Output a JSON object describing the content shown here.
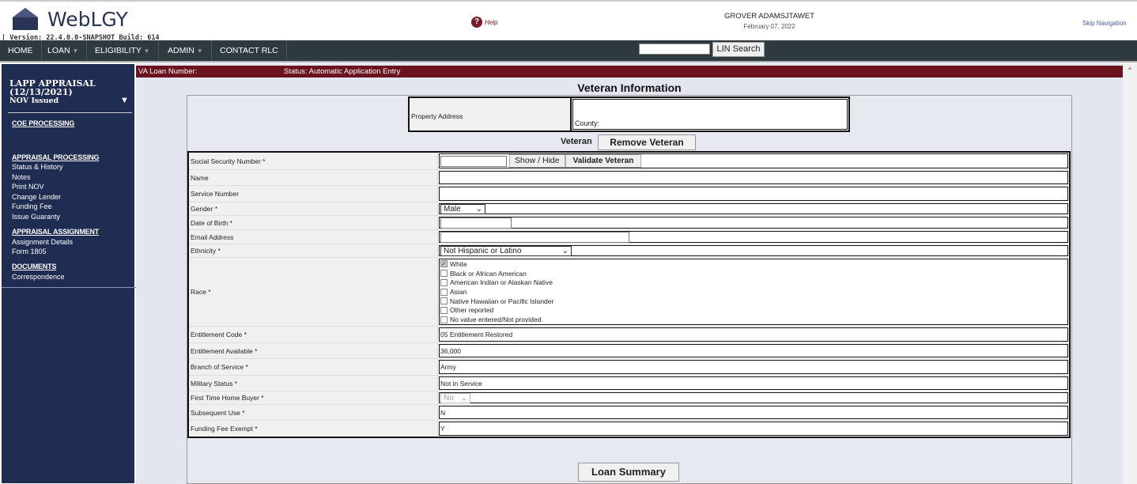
{
  "header": {
    "app_name": "WebLGY",
    "version": "| Version: 22.4.0.0-SNAPSHOT Build: 614",
    "help": "Help",
    "user": "GROVER ADAMSJTAWET",
    "date": "February 07, 2022",
    "skip_nav": "Skip Navigation"
  },
  "nav": {
    "items": [
      {
        "label": "HOME"
      },
      {
        "label": "LOAN"
      },
      {
        "label": "ELIGIBILITY"
      },
      {
        "label": "ADMIN"
      },
      {
        "label": "CONTACT RLC"
      }
    ],
    "lin_search": "LIN Search",
    "lin_value": ""
  },
  "sidebar": {
    "title": "LAPP APPRAISAL",
    "date": "(12/13/2021)",
    "status": "NOV Issued",
    "coe": "COE PROCESSING",
    "appraisal_processing": "APPRAISAL PROCESSING",
    "ap_items": [
      "Status & History",
      "Notes",
      "Print NOV",
      "Change Lender",
      "Funding Fee",
      "Issue Guaranty"
    ],
    "appraisal_assignment": "APPRAISAL ASSIGNMENT",
    "aa_items": [
      "Assignment Details",
      "Form 1805"
    ],
    "documents": "DOCUMENTS",
    "doc_items": [
      "Correspondence"
    ]
  },
  "colors": {
    "brand_navy": "#1f2d52",
    "status_bar": "#6b1420",
    "nav_bg": "#2f3a40"
  },
  "statusbar": {
    "loan_number": "VA Loan Number:",
    "status": "Status: Automatic Application Entry"
  },
  "main": {
    "title": "Veteran Information",
    "property_address": "Property Address",
    "county": "County:",
    "veteran": "Veteran",
    "remove_veteran": "Remove Veteran",
    "loan_summary": "Loan Summary"
  },
  "form": {
    "ssn": {
      "label": "Social Security Number *",
      "show_hide": "Show / Hide",
      "validate": "Validate Veteran"
    },
    "name": {
      "label": "Name"
    },
    "service_number": {
      "label": "Service Number"
    },
    "gender": {
      "label": "Gender *",
      "value": "Male"
    },
    "dob": {
      "label": "Date of Birth *"
    },
    "email": {
      "label": "Email Address"
    },
    "ethnicity": {
      "label": "Ethnicity *",
      "value": "Not Hispanic or Latino"
    },
    "race": {
      "label": "Race *",
      "options": [
        {
          "label": "White",
          "checked": true
        },
        {
          "label": "Black or African American",
          "checked": false
        },
        {
          "label": "American Indian or Alaskan Native",
          "checked": false
        },
        {
          "label": "Asian",
          "checked": false
        },
        {
          "label": "Native Hawaiian or Pacific Islander",
          "checked": false
        },
        {
          "label": "Other reported",
          "checked": false
        },
        {
          "label": "No value entered/Not provided",
          "checked": false
        }
      ]
    },
    "entitlement_code": {
      "label": "Entitlement Code *",
      "value": "05 Entitlement Restored"
    },
    "entitlement_available": {
      "label": "Entitlement Available *",
      "value": "36,000"
    },
    "branch": {
      "label": "Branch of Service *",
      "value": "Army"
    },
    "military_status": {
      "label": "Military Status *",
      "value": "Not in Service"
    },
    "first_time": {
      "label": "First Time Home Buyer *",
      "value": "No"
    },
    "subsequent_use": {
      "label": "Subsequent Use *",
      "value": "N"
    },
    "funding_fee_exempt": {
      "label": "Funding Fee Exempt *",
      "value": "Y"
    }
  }
}
